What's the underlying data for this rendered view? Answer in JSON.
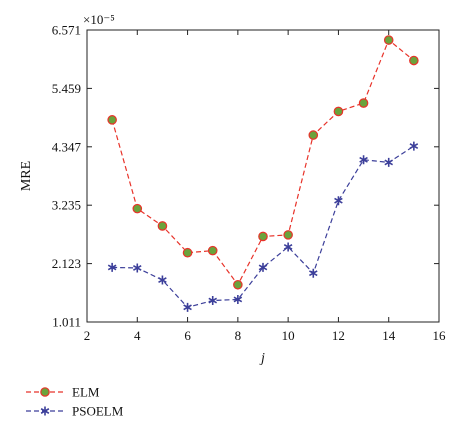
{
  "chart_data": {
    "type": "line",
    "xlabel": "j",
    "ylabel": "MRE",
    "y_multiplier": "×10⁻⁵",
    "xlim": [
      2,
      16
    ],
    "ylim": [
      1.011,
      6.571
    ],
    "x_ticks": [
      "2",
      "4",
      "6",
      "8",
      "10",
      "12",
      "14",
      "16"
    ],
    "y_ticks": [
      "1.011",
      "2.123",
      "3.235",
      "4.347",
      "5.459",
      "6.571"
    ],
    "x": [
      3,
      4,
      5,
      6,
      7,
      8,
      9,
      10,
      11,
      12,
      13,
      14,
      15
    ],
    "grid": false,
    "legend_position": "bottom-left",
    "series": [
      {
        "name": "ELM",
        "color": "#e8332a",
        "marker": "circle",
        "marker_fill": "#6aa33c",
        "line_style": "dashed",
        "values": [
          4.86,
          3.17,
          2.84,
          2.33,
          2.37,
          1.72,
          2.64,
          2.67,
          4.57,
          5.02,
          5.18,
          6.38,
          5.99
        ]
      },
      {
        "name": "PSOELM",
        "color": "#3c3f9a",
        "marker": "star",
        "line_style": "dashed",
        "values": [
          2.05,
          2.04,
          1.81,
          1.29,
          1.42,
          1.44,
          2.05,
          2.44,
          1.94,
          3.32,
          4.1,
          4.05,
          4.36
        ]
      }
    ]
  }
}
